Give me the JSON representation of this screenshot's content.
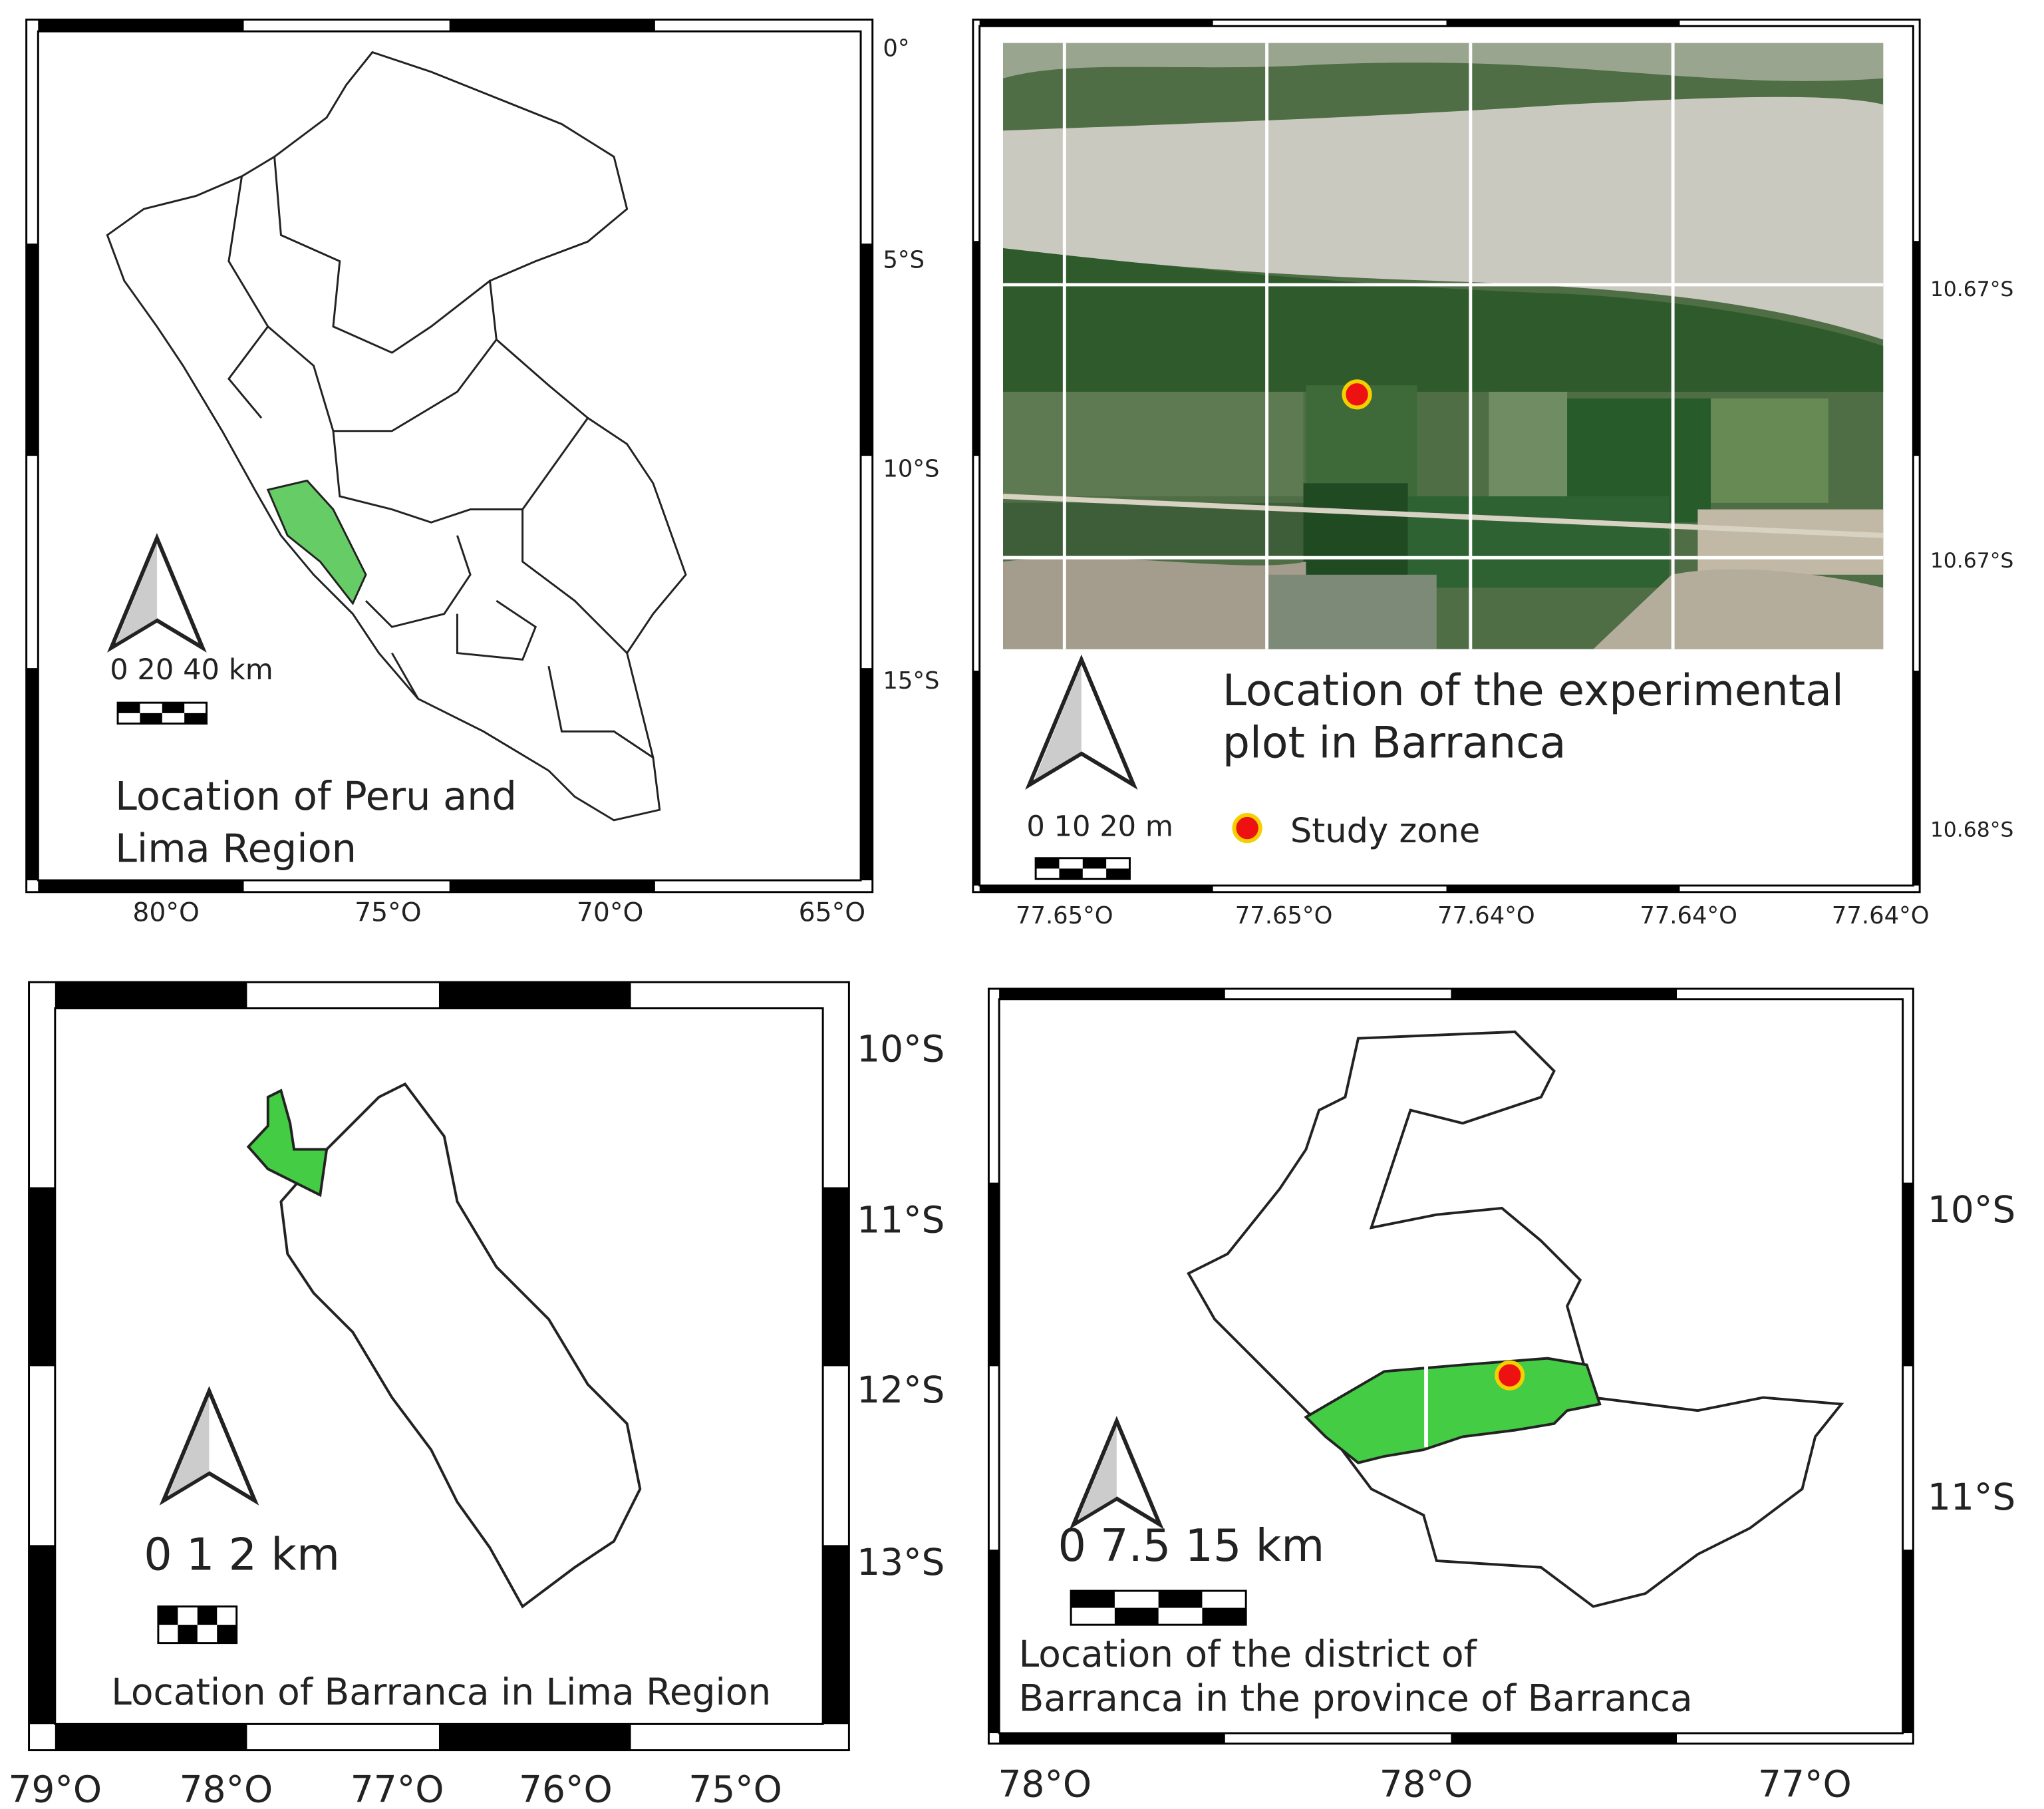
{
  "panels": [
    {
      "title": [
        "Location of Peru and",
        "Lima Region"
      ],
      "scale": "0 20 40 km",
      "x_labels": [
        "80°O",
        "75°O",
        "70°O",
        "65°O"
      ],
      "y_labels": [
        "0°",
        "5°S",
        "10°S",
        "15°S"
      ]
    },
    {
      "title": [
        "Location of the experimental",
        "plot in Barranca"
      ],
      "scale": "0 10 20 m",
      "legend": "Study zone",
      "x_labels": [
        "77.65°O",
        "77.65°O",
        "77.64°O",
        "77.64°O",
        "77.64°O"
      ],
      "y_labels": [
        "10.67°S",
        "10.67°S",
        "10.68°S"
      ]
    },
    {
      "title": [
        "Location of Barranca in Lima Region"
      ],
      "scale": "0 1 2 km",
      "x_labels": [
        "79°O",
        "78°O",
        "77°O",
        "76°O",
        "75°O"
      ],
      "y_labels": [
        "10°S",
        "11°S",
        "12°S",
        "13°S"
      ]
    },
    {
      "title": [
        "Location of the district of",
        "Barranca in the province of Barranca"
      ],
      "scale": "0 7.5 15 km",
      "x_labels": [
        "78°O",
        "78°O",
        "77°O"
      ],
      "y_labels": [
        "10°S",
        "11°S"
      ]
    }
  ]
}
